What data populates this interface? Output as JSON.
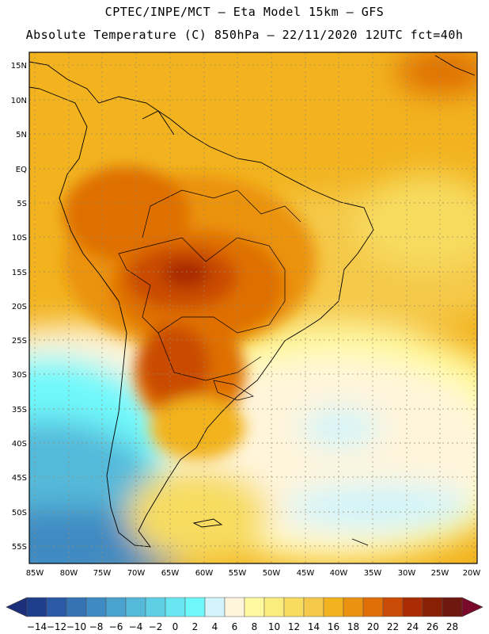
{
  "header": {
    "line1": "CPTEC/INPE/MCT –  Eta Model 15km – GFS",
    "line2": "Absolute Temperature (C) 850hPa – 22/11/2020 12UTC fct=40h"
  },
  "axes": {
    "lat_labels": [
      "15N",
      "10N",
      "5N",
      "EQ",
      "5S",
      "10S",
      "15S",
      "20S",
      "25S",
      "30S",
      "35S",
      "40S",
      "45S",
      "50S",
      "55S"
    ],
    "lon_labels": [
      "85W",
      "80W",
      "75W",
      "70W",
      "65W",
      "60W",
      "55W",
      "50W",
      "45W",
      "40W",
      "35W",
      "30W",
      "25W",
      "20W"
    ]
  },
  "colorbar": {
    "labels": [
      "-14",
      "-12",
      "-10",
      "-8",
      "-6",
      "-4",
      "-2",
      "0",
      "2",
      "4",
      "6",
      "8",
      "10",
      "12",
      "14",
      "16",
      "18",
      "20",
      "22",
      "24",
      "26",
      "28"
    ],
    "colors": [
      "#1f3f8c",
      "#2a5aa6",
      "#3573b4",
      "#3f8ac2",
      "#4aa2cf",
      "#55b9da",
      "#5ed0e6",
      "#68e6f1",
      "#6ff8fb",
      "#d2f4fa",
      "#fff5dc",
      "#fffaa0",
      "#fbec7d",
      "#f7dc60",
      "#f5c94a",
      "#f2b31f",
      "#eb9310",
      "#df6f06",
      "#ca4b05",
      "#a92c05",
      "#882005",
      "#6e1810"
    ],
    "low_color": "#1c2f7a",
    "high_color": "#7a0a2c"
  }
}
